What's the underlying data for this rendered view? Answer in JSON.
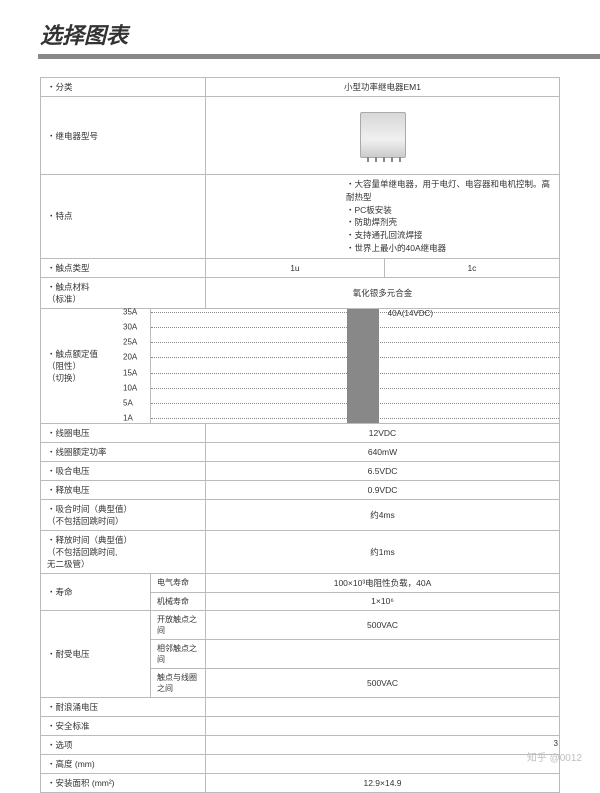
{
  "title": "选择图表",
  "rows": {
    "category_label": "・分类",
    "category_value": "小型功率继电器EM1",
    "model_label": "・继电器型号",
    "features_label": "・特点",
    "features": [
      "・大容量单继电器，用于电灯、电容器和电机控制。高耐热型",
      "・PC板安装",
      "・防助焊剂壳",
      "・支持通孔回流焊接",
      "・世界上最小的40A继电器"
    ],
    "contact_type_label": "・触点类型",
    "contact_type_a": "1u",
    "contact_type_b": "1c",
    "contact_mat_label": "・触点材料\n（标准）",
    "contact_mat_value": "氧化银多元合金",
    "rating_label": "・触点额定值\n（阻性）\n（切换）",
    "coil_v_label": "・线圈电压",
    "coil_v": "12VDC",
    "coil_p_label": "・线圈额定功率",
    "coil_p": "640mW",
    "pickup_label": "・吸合电压",
    "pickup": "6.5VDC",
    "release_label": "・释放电压",
    "release": "0.9VDC",
    "op_time_label": "・吸合时间（典型值）\n（不包括回跳时间）",
    "op_time": "约4ms",
    "rel_time_label": "・释放时间（典型值）\n（不包括回跳时间,\n无二极管）",
    "rel_time": "约1ms",
    "life_label": "・寿命",
    "elec_life_label": "电气寿命",
    "elec_life": "100×10³电阻性负载，40A",
    "mech_life_label": "机械寿命",
    "mech_life": "1×10⁶",
    "withstand_label": "・耐受电压",
    "open_label": "开放触点之间",
    "open": "500VAC",
    "adj_label": "相邻触点之间",
    "adj": "",
    "coil_contact_label": "触点与线圈之间",
    "coil_contact": "500VAC",
    "surge_label": "・耐浪涌电压",
    "surge": "",
    "safety_label": "・安全标准",
    "safety": "",
    "option_label": "・选项",
    "option": "",
    "height_label": "・高度 (mm)",
    "height": "",
    "area_label": "・安装面积 (mm²)",
    "area": "12.9×14.9"
  },
  "chart": {
    "y_ticks": [
      "35A",
      "30A",
      "25A",
      "20A",
      "15A",
      "10A",
      "5A",
      "1A"
    ],
    "bar": {
      "left_pct": 48,
      "width_pct": 8,
      "height_pct": 100,
      "color": "#888888",
      "label": "40A(14VDC)"
    }
  },
  "watermark": "知乎 @0012",
  "page_number": "3"
}
